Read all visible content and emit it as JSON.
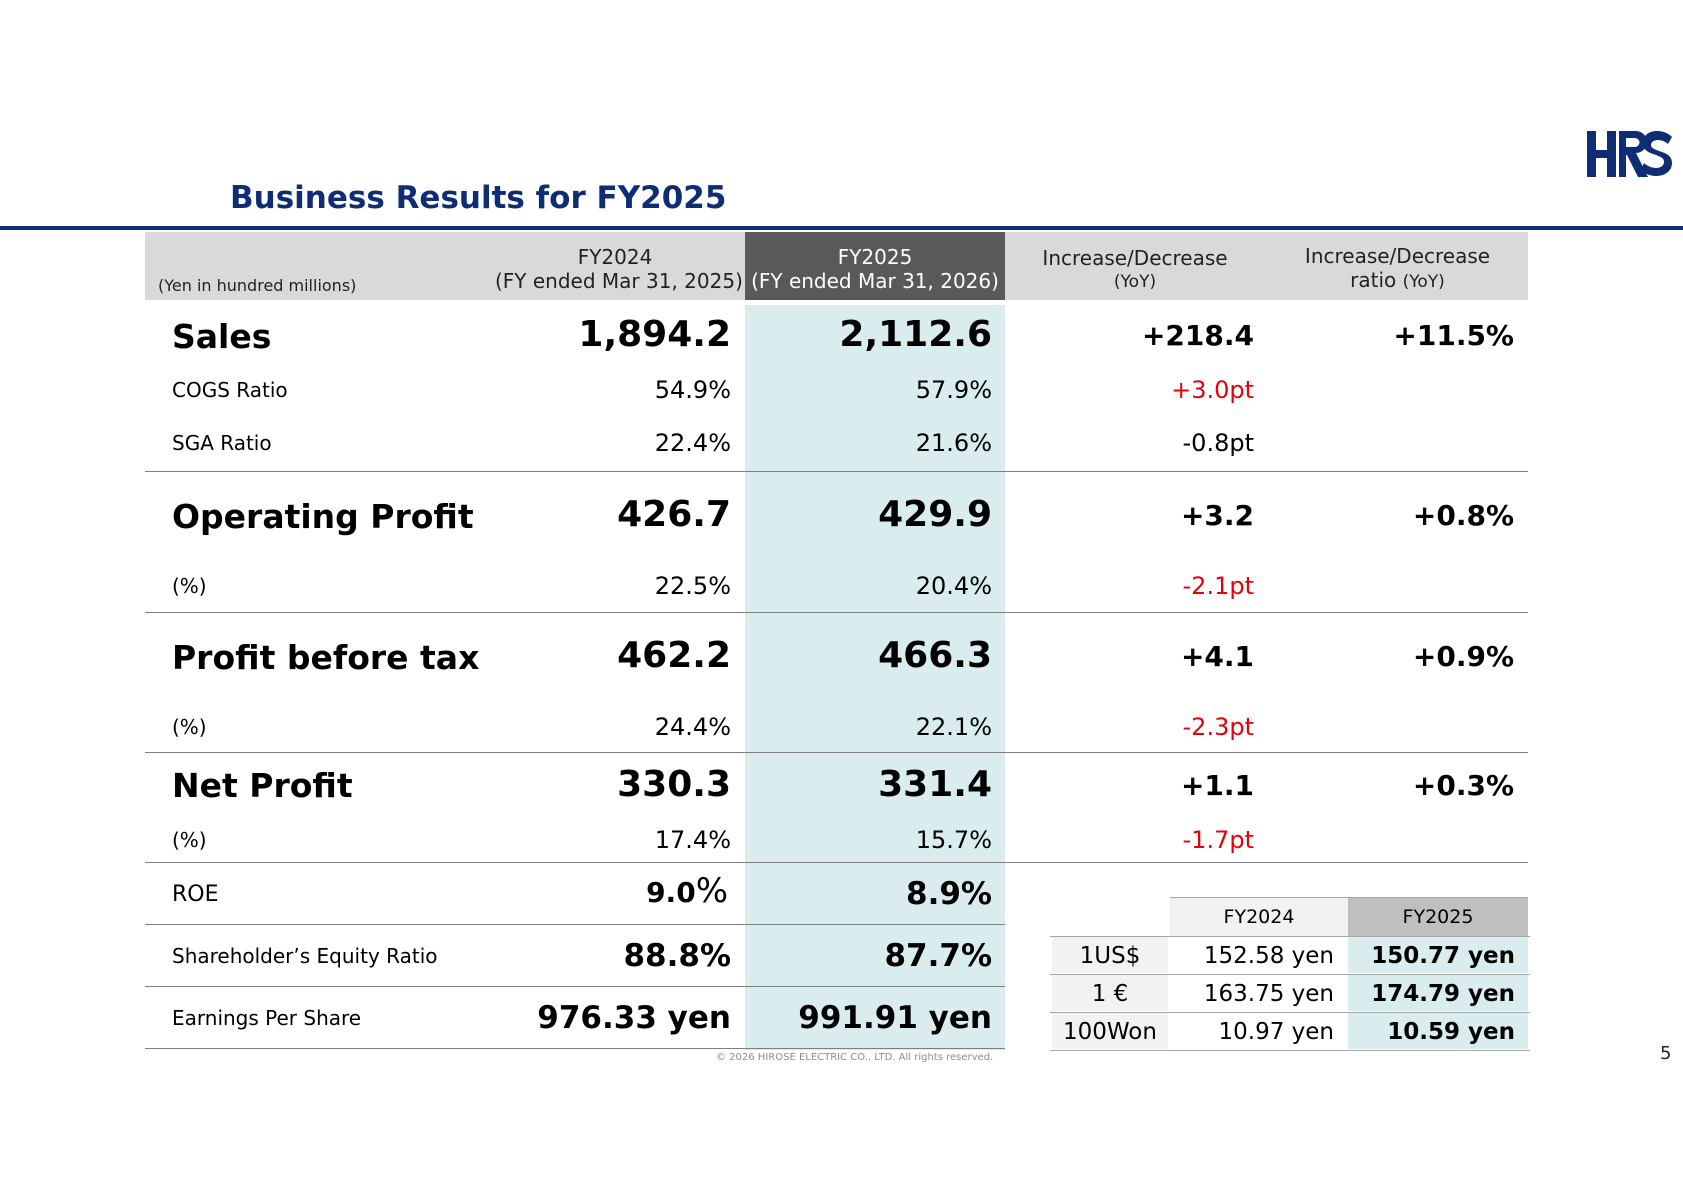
{
  "logo_text": "HRS",
  "title": "Business Results for FY2025",
  "unit_note": "(Yen in hundred millions)",
  "columns": {
    "fy2024": {
      "line1": "FY2024",
      "line2": "(FY ended Mar 31, 2025)"
    },
    "fy2025": {
      "line1": "FY2025",
      "line2": "(FY ended Mar 31, 2026)"
    },
    "yoy": {
      "line1": "Increase/Decrease",
      "line2": "(YoY)"
    },
    "ratio": {
      "line1": "Increase/Decrease",
      "line2a": "ratio",
      "line2b": "(YoY)"
    }
  },
  "rows": {
    "sales": {
      "label": "Sales",
      "fy2024": "1,894.2",
      "fy2025": "2,112.6",
      "change": "+218.4",
      "ratio": "+11.5%"
    },
    "cogs": {
      "label": "COGS Ratio",
      "fy2024": "54.9%",
      "fy2025": "57.9%",
      "change": "+3.0pt"
    },
    "sga": {
      "label": "SGA Ratio",
      "fy2024": "22.4%",
      "fy2025": "21.6%",
      "change": "-0.8pt"
    },
    "op": {
      "label": "Operating Profit",
      "fy2024": "426.7",
      "fy2025": "429.9",
      "change": "+3.2",
      "ratio": "+0.8%"
    },
    "op_pct": {
      "label": "(%)",
      "fy2024": "22.5%",
      "fy2025": "20.4%",
      "change": "-2.1pt"
    },
    "pbt": {
      "label": "Profit before tax",
      "fy2024": "462.2",
      "fy2025": "466.3",
      "change": "+4.1",
      "ratio": "+0.9%"
    },
    "pbt_pct": {
      "label": "(%)",
      "fy2024": "24.4%",
      "fy2025": "22.1%",
      "change": "-2.3pt"
    },
    "np": {
      "label": "Net Profit",
      "fy2024": "330.3",
      "fy2025": "331.4",
      "change": "+1.1",
      "ratio": "+0.3%"
    },
    "np_pct": {
      "label": "(%)",
      "fy2024": "17.4%",
      "fy2025": "15.7%",
      "change": "-1.7pt"
    },
    "roe": {
      "label": "ROE",
      "fy2024_num": "9.0",
      "fy2024_unit": "%",
      "fy2025": "8.9%"
    },
    "equity": {
      "label": "Shareholder’s Equity Ratio",
      "fy2024": "88.8%",
      "fy2025": "87.7%"
    },
    "eps": {
      "label": "Earnings Per Share",
      "fy2024": "976.33 yen",
      "fy2025": "991.91 yen"
    }
  },
  "fx": {
    "headers": {
      "fy2024": "FY2024",
      "fy2025": "FY2025"
    },
    "rows": [
      {
        "label": "1US$",
        "fy2024": "152.58 yen",
        "fy2025": "150.77 yen"
      },
      {
        "label": "1 €",
        "fy2024": "163.75 yen",
        "fy2025": "174.79 yen"
      },
      {
        "label": "100Won",
        "fy2024": "10.97 yen",
        "fy2025": "10.59 yen"
      }
    ]
  },
  "copyright": "© 2026 HIROSE ELECTRIC CO., LTD. All rights reserved.",
  "page_number": "5",
  "colors": {
    "brand_navy": "#0e2d74",
    "negative_red": "#e8000b",
    "highlight_col": "#daedee",
    "header_dark": "#595959",
    "header_gray": "#d9d9d9"
  }
}
